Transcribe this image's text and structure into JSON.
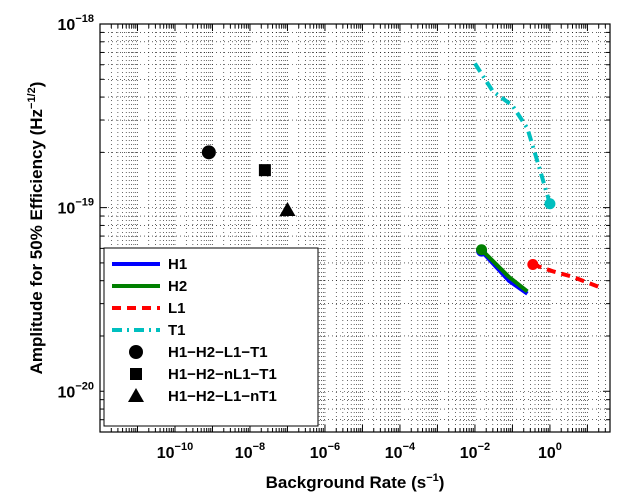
{
  "chart_data": {
    "type": "line",
    "xscale": "log",
    "yscale": "log",
    "xlabel": "Background Rate (s",
    "xlabel_sup": "−1",
    "xlabel_end": ")",
    "ylabel": "Amplitude for 50% Efficiency (Hz",
    "ylabel_sup": "−1/2",
    "ylabel_end": ")",
    "xlim": [
      1e-12,
      40
    ],
    "ylim": [
      6e-21,
      1e-18
    ],
    "grid": "on (dotted, major and minor)",
    "legend_placement": "lower-left",
    "x_ticks": [
      {
        "value": 1e-10,
        "base": "10",
        "exp": "−10"
      },
      {
        "value": 1e-08,
        "base": "10",
        "exp": "−8"
      },
      {
        "value": 1e-06,
        "base": "10",
        "exp": "−6"
      },
      {
        "value": 0.0001,
        "base": "10",
        "exp": "−4"
      },
      {
        "value": 0.01,
        "base": "10",
        "exp": "−2"
      },
      {
        "value": 1,
        "base": "10",
        "exp": "0"
      }
    ],
    "y_ticks": [
      {
        "value": 1e-20,
        "base": "10",
        "exp": "−20"
      },
      {
        "value": 1e-19,
        "base": "10",
        "exp": "−19"
      },
      {
        "value": 1e-18,
        "base": "10",
        "exp": "−18"
      }
    ],
    "series": [
      {
        "name": "H1",
        "color": "#0000ff",
        "style": "solid",
        "end_marker": "circle",
        "x": [
          0.015,
          0.08,
          0.25
        ],
        "y": [
          5.8e-20,
          4e-20,
          3.4e-20
        ]
      },
      {
        "name": "H2",
        "color": "#008000",
        "style": "solid",
        "end_marker": "circle",
        "x": [
          0.015,
          0.08,
          0.25
        ],
        "y": [
          5.9e-20,
          4.2e-20,
          3.5e-20
        ]
      },
      {
        "name": "L1",
        "color": "#ff0000",
        "style": "dashed",
        "end_marker": "circle",
        "x": [
          0.35,
          1.2,
          4.0,
          20
        ],
        "y": [
          4.9e-20,
          4.5e-20,
          4.2e-20,
          3.7e-20
        ]
      },
      {
        "name": "T1",
        "color": "#00bfbf",
        "style": "dashdot",
        "end_marker": "circle",
        "x": [
          0.01,
          0.03,
          0.1,
          0.25,
          0.5,
          1.0
        ],
        "y": [
          6.1e-19,
          4.3e-19,
          3.6e-19,
          2.7e-19,
          1.7e-19,
          1.05e-19
        ]
      }
    ],
    "points": [
      {
        "name": "H1−H2−L1−T1",
        "marker": "circle",
        "x": 8e-10,
        "y": 2e-19
      },
      {
        "name": "H1−H2−nL1−T1",
        "marker": "square",
        "x": 2.5e-08,
        "y": 1.6e-19
      },
      {
        "name": "H1−H2−L1−nT1",
        "marker": "triangle",
        "x": 1e-07,
        "y": 9.7e-20
      }
    ]
  }
}
